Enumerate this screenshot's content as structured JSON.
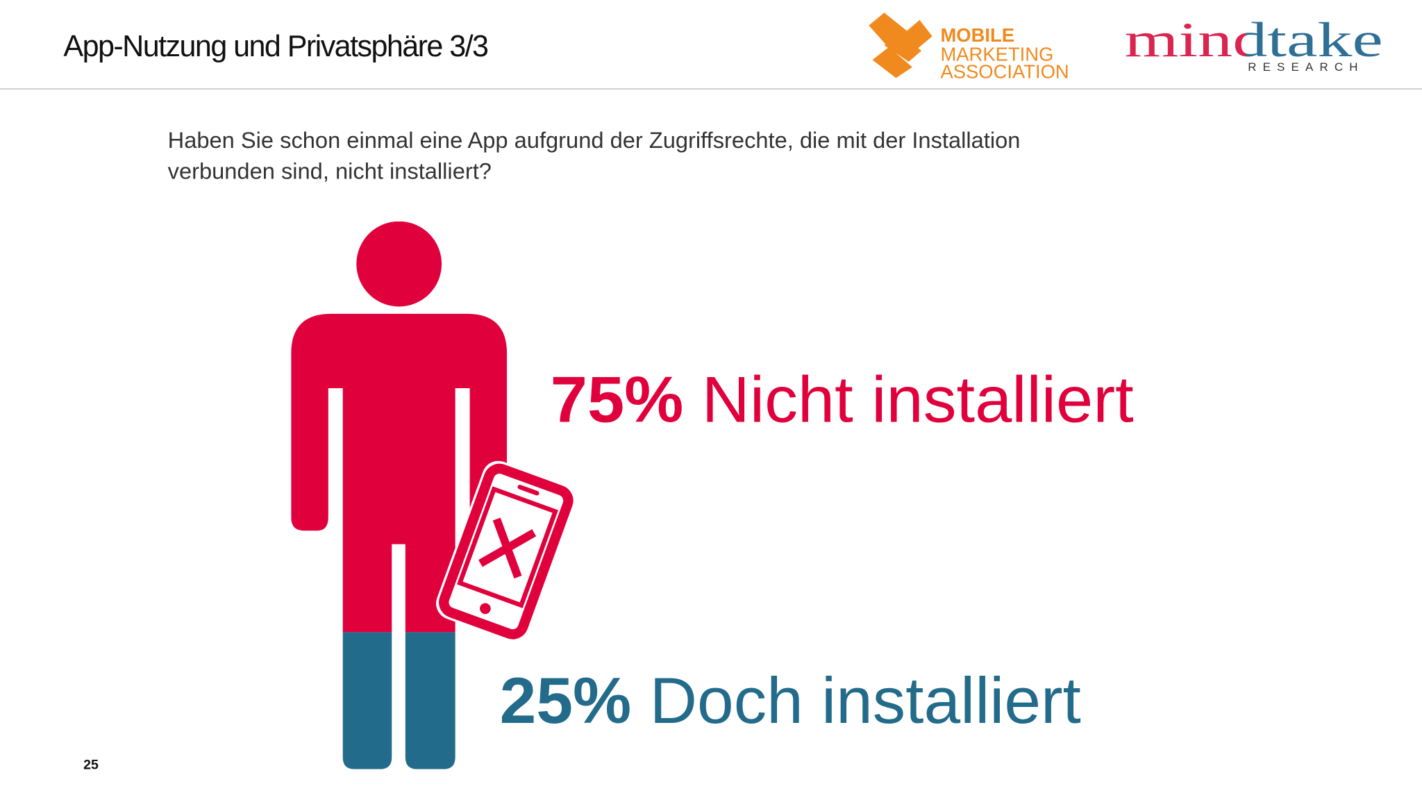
{
  "slide": {
    "title": "App-Nutzung und Privatsphäre 3/3",
    "page_number": 25,
    "logo_mma": [
      "MOBILE",
      "MARKETING",
      "ASSOCIATION"
    ],
    "logo_mindtake": {
      "name": "mindtake",
      "tagline": "RESEARCH"
    }
  },
  "chart_data": {
    "type": "pictograph",
    "title": [
      "Haben Sie schon einmal eine App aufgrund der Zugriffsrechte, die mit der Installation",
      "verbunden sind, nicht installiert?"
    ],
    "categories": [
      "Nicht installiert",
      "Doch installiert"
    ],
    "values": [
      75,
      25
    ],
    "value_labels": [
      "75%",
      "25%"
    ],
    "colors": [
      "#e0003c",
      "#236b8a"
    ]
  }
}
